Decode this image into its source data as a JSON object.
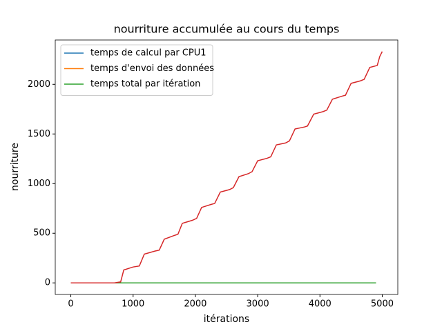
{
  "chart_data": {
    "type": "line",
    "title": "nourriture accumulée au cours du temps",
    "x_label": "itérations",
    "y_label": "nourriture",
    "xlim": [
      -250,
      5250
    ],
    "xticks": [
      0,
      1000,
      2000,
      3000,
      4000,
      5000
    ],
    "ylim": [
      -116.5,
      2446.5
    ],
    "yticks": [
      0,
      500,
      1000,
      1500,
      2000
    ],
    "legend": "upper left",
    "series": [
      {
        "name": "temps de calcul par CPU1",
        "color": "#1f77b4",
        "x": [
          0,
          4900
        ],
        "values": [
          0,
          0
        ]
      },
      {
        "name": "temps d'envoi des données",
        "color": "#ff7f0e",
        "x": [
          0,
          4900
        ],
        "values": [
          0,
          0
        ]
      },
      {
        "name": "temps total par itération",
        "color": "#2ca02c",
        "x": [
          0,
          4900
        ],
        "values": [
          0,
          0
        ]
      },
      {
        "color": "#d62728",
        "x": [
          0,
          700,
          800,
          850,
          1000,
          1100,
          1180,
          1350,
          1420,
          1500,
          1650,
          1720,
          1790,
          1950,
          2020,
          2100,
          2250,
          2310,
          2400,
          2550,
          2610,
          2700,
          2850,
          2910,
          3000,
          3150,
          3210,
          3300,
          3450,
          3510,
          3600,
          3750,
          3800,
          3900,
          4050,
          4110,
          4200,
          4350,
          4410,
          4500,
          4650,
          4710,
          4800,
          4920,
          4960,
          5000
        ],
        "values": [
          0,
          0,
          10,
          130,
          160,
          170,
          290,
          320,
          330,
          440,
          475,
          490,
          600,
          630,
          650,
          760,
          790,
          800,
          915,
          940,
          960,
          1070,
          1100,
          1120,
          1230,
          1255,
          1270,
          1390,
          1410,
          1430,
          1550,
          1570,
          1580,
          1700,
          1725,
          1740,
          1850,
          1880,
          1890,
          2010,
          2035,
          2050,
          2170,
          2190,
          2280,
          2330
        ]
      }
    ]
  }
}
